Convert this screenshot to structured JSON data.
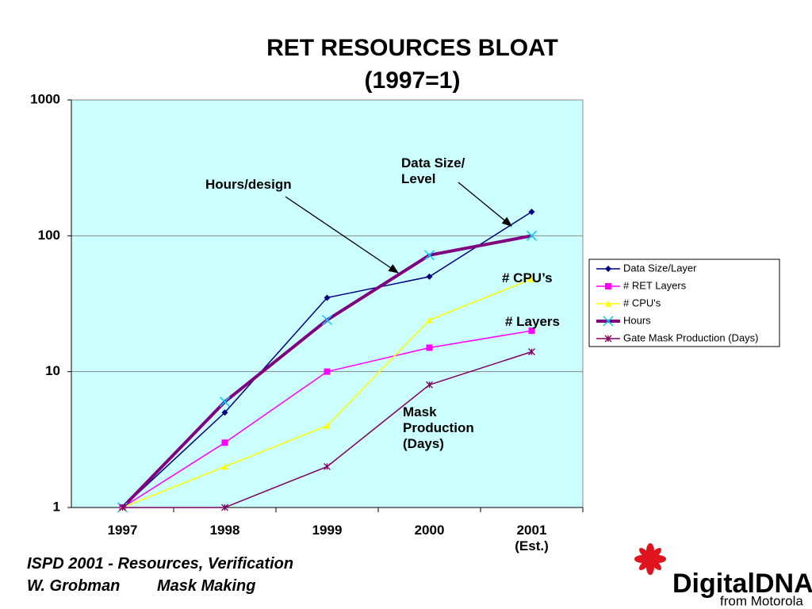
{
  "chart_data": {
    "type": "line",
    "title": "RET RESOURCES BLOAT",
    "subtitle": "(1997=1)",
    "categories": [
      "1997",
      "1998",
      "1999",
      "2000",
      "2001\n(Est.)"
    ],
    "ylim": [
      1,
      1000
    ],
    "yticks": [
      1,
      10,
      100,
      1000
    ],
    "log_scale": true,
    "grid": true,
    "legend": "right",
    "background": "#ccffff",
    "series": [
      {
        "name": "Data Size/Layer",
        "color": "#000080",
        "marker": "diamond",
        "width": 1.5,
        "values": [
          1,
          5,
          35,
          50,
          150
        ]
      },
      {
        "name": "# RET Layers",
        "color": "#ff00ff",
        "marker": "square",
        "width": 1.5,
        "values": [
          1,
          3,
          10,
          15,
          20
        ]
      },
      {
        "name": "# CPU's",
        "color": "#ffff00",
        "marker": "triangle",
        "width": 1.5,
        "values": [
          1,
          2,
          4,
          24,
          48
        ]
      },
      {
        "name": "Hours",
        "color": "#800080",
        "marker_color": "#00ccff",
        "marker": "x",
        "width": 4,
        "values": [
          1,
          6,
          24,
          72,
          100
        ]
      },
      {
        "name": "Gate Mask Production (Days)",
        "color": "#800060",
        "marker": "asterisk",
        "width": 1.5,
        "values": [
          1,
          1,
          2,
          8,
          14
        ]
      }
    ],
    "annotations": [
      "Hours/design",
      "Data Size/\nLevel",
      "# CPU’s",
      "# Layers",
      "Mask\nProduction\n(Days)"
    ]
  },
  "footer": {
    "line1": "ISPD 2001 - Resources, Verification",
    "author": "W. Grobman",
    "topic": "Mask Making"
  },
  "logo": {
    "brand": "Digital",
    "brand2": "DNA",
    "tagline": "from Motorola"
  }
}
